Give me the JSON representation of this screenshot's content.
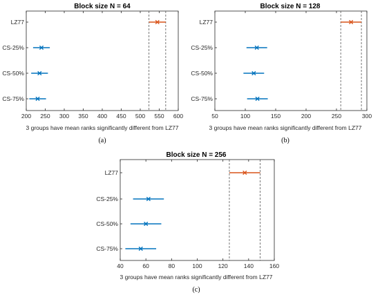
{
  "chart_data": [
    {
      "type": "interval",
      "title": "Block size N = 64",
      "xlabel": "3 groups have mean ranks significantly different from LZ77",
      "caption": "(a)",
      "categories": [
        "LZ77",
        "CS-25%",
        "CS-50%",
        "CS-75%"
      ],
      "xlim": [
        200,
        600
      ],
      "xticks": [
        200,
        250,
        300,
        350,
        400,
        450,
        500,
        550,
        600
      ],
      "series": [
        {
          "category": "LZ77",
          "mean": 545,
          "low": 523,
          "high": 567,
          "color": "#D95319"
        },
        {
          "category": "CS-25%",
          "mean": 240,
          "low": 218,
          "high": 262,
          "color": "#0072BD"
        },
        {
          "category": "CS-50%",
          "mean": 235,
          "low": 213,
          "high": 257,
          "color": "#0072BD"
        },
        {
          "category": "CS-75%",
          "mean": 230,
          "low": 208,
          "high": 252,
          "color": "#0072BD"
        }
      ],
      "reference_lines": [
        523,
        567
      ]
    },
    {
      "type": "interval",
      "title": "Block size N = 128",
      "xlabel": "3 groups have mean ranks significantly different from LZ77",
      "caption": "(b)",
      "categories": [
        "LZ77",
        "CS-25%",
        "CS-50%",
        "CS-75%"
      ],
      "xlim": [
        50,
        300
      ],
      "xticks": [
        50,
        100,
        150,
        200,
        250,
        300
      ],
      "series": [
        {
          "category": "LZ77",
          "mean": 274,
          "low": 257,
          "high": 291,
          "color": "#D95319"
        },
        {
          "category": "CS-25%",
          "mean": 119,
          "low": 102,
          "high": 136,
          "color": "#0072BD"
        },
        {
          "category": "CS-50%",
          "mean": 114,
          "low": 97,
          "high": 131,
          "color": "#0072BD"
        },
        {
          "category": "CS-75%",
          "mean": 120,
          "low": 103,
          "high": 137,
          "color": "#0072BD"
        }
      ],
      "reference_lines": [
        257,
        291
      ]
    },
    {
      "type": "interval",
      "title": "Block size N = 256",
      "xlabel": "3 groups have mean ranks significantly different from LZ77",
      "caption": "(c)",
      "categories": [
        "LZ77",
        "CS-25%",
        "CS-50%",
        "CS-75%"
      ],
      "xlim": [
        40,
        160
      ],
      "xticks": [
        40,
        60,
        80,
        100,
        120,
        140,
        160
      ],
      "series": [
        {
          "category": "LZ77",
          "mean": 137,
          "low": 125,
          "high": 149,
          "color": "#D95319"
        },
        {
          "category": "CS-25%",
          "mean": 62,
          "low": 50,
          "high": 74,
          "color": "#0072BD"
        },
        {
          "category": "CS-50%",
          "mean": 60,
          "low": 48,
          "high": 72,
          "color": "#0072BD"
        },
        {
          "category": "CS-75%",
          "mean": 56,
          "low": 44,
          "high": 68,
          "color": "#0072BD"
        }
      ],
      "reference_lines": [
        125,
        149
      ]
    }
  ]
}
